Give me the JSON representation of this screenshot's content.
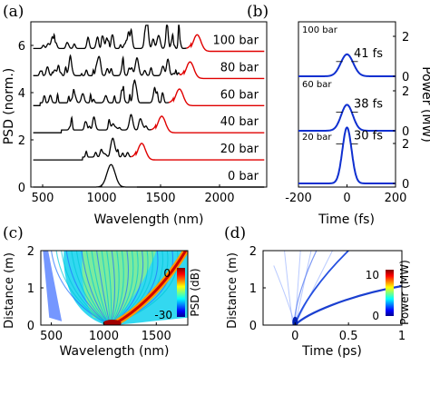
{
  "chart_data": [
    {
      "panel_label": "(a)",
      "type": "line",
      "xlabel": "Wavelength (nm)",
      "ylabel": "PSD (norm.)",
      "xlim": [
        400,
        2400
      ],
      "ylim": [
        0,
        7
      ],
      "xticks": [
        "500",
        "1000",
        "1500",
        "2000"
      ],
      "yticks": [
        "0",
        "2",
        "4",
        "6"
      ],
      "series": [
        {
          "name": "0 bar",
          "offset": 0.0,
          "pump_center": 1080,
          "soliton_center": null
        },
        {
          "name": "20 bar",
          "offset": 1.15,
          "pump_center": 1100,
          "soliton_center": 1340
        },
        {
          "name": "40 bar",
          "offset": 2.3,
          "pump_center": 1250,
          "soliton_center": 1510
        },
        {
          "name": "60 bar",
          "offset": 3.45,
          "pump_center": 1280,
          "soliton_center": 1660
        },
        {
          "name": "80 bar",
          "offset": 4.6,
          "pump_center": 1300,
          "soliton_center": 1750
        },
        {
          "name": "100 bar",
          "offset": 5.75,
          "pump_center": 1380,
          "soliton_center": 1810
        }
      ]
    },
    {
      "panel_label": "(b)",
      "type": "line",
      "xlabel": "Time (fs)",
      "ylabel": "Power (MW)",
      "xlim": [
        -200,
        200
      ],
      "xticks": [
        "-200",
        "0",
        "200"
      ],
      "yticks": [
        "0",
        "2"
      ],
      "series": [
        {
          "name": "100 bar",
          "duration_label": "41 fs",
          "peak_MW": 1.1
        },
        {
          "name": "60 bar",
          "duration_label": "38 fs",
          "peak_MW": 1.3
        },
        {
          "name": "20 bar",
          "duration_label": "30 fs",
          "peak_MW": 2.8
        }
      ]
    },
    {
      "panel_label": "(c)",
      "type": "heatmap",
      "xlabel": "Wavelength (nm)",
      "ylabel": "Distance (m)",
      "xlim": [
        400,
        1800
      ],
      "ylim": [
        0,
        2
      ],
      "xticks": [
        "500",
        "1000",
        "1500"
      ],
      "yticks": [
        "0",
        "1",
        "2"
      ],
      "colorbar": {
        "label": "PSD (dB)",
        "ticks": [
          "0",
          "-30"
        ],
        "range": [
          -35,
          0
        ]
      }
    },
    {
      "panel_label": "(d)",
      "type": "heatmap",
      "xlabel": "Time (ps)",
      "ylabel": "Distance (m)",
      "xlim": [
        -0.3,
        1.0
      ],
      "ylim": [
        0,
        2
      ],
      "xticks": [
        "0",
        "0.5",
        "1"
      ],
      "yticks": [
        "0",
        "1",
        "2"
      ],
      "colorbar": {
        "label": "Power (MW)",
        "ticks": [
          "10",
          "0"
        ],
        "range": [
          0,
          11
        ]
      }
    }
  ]
}
